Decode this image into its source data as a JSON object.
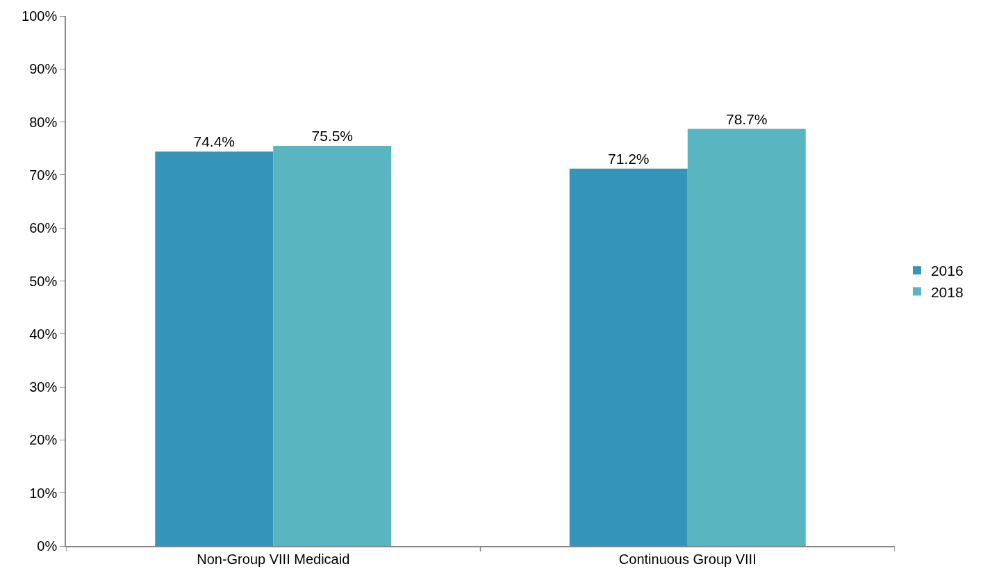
{
  "chart_data": {
    "type": "bar",
    "categories": [
      "Non-Group VIII Medicaid",
      "Continuous Group VIII"
    ],
    "series": [
      {
        "name": "2016",
        "color": "#3594ba",
        "values": [
          74.4,
          71.2
        ],
        "value_labels": [
          "74.4%",
          "71.2%"
        ]
      },
      {
        "name": "2018",
        "color": "#59b5c0",
        "values": [
          75.5,
          78.7
        ],
        "value_labels": [
          "75.5%",
          "78.7%"
        ]
      }
    ],
    "ylim": [
      0,
      100
    ],
    "yticks": [
      {
        "value": 0,
        "label": "0%"
      },
      {
        "value": 10,
        "label": "10%"
      },
      {
        "value": 20,
        "label": "20%"
      },
      {
        "value": 30,
        "label": "30%"
      },
      {
        "value": 40,
        "label": "40%"
      },
      {
        "value": 50,
        "label": "50%"
      },
      {
        "value": 60,
        "label": "60%"
      },
      {
        "value": 70,
        "label": "70%"
      },
      {
        "value": 80,
        "label": "80%"
      },
      {
        "value": 90,
        "label": "90%"
      },
      {
        "value": 100,
        "label": "100%"
      }
    ],
    "grid": false,
    "legend": "right"
  }
}
